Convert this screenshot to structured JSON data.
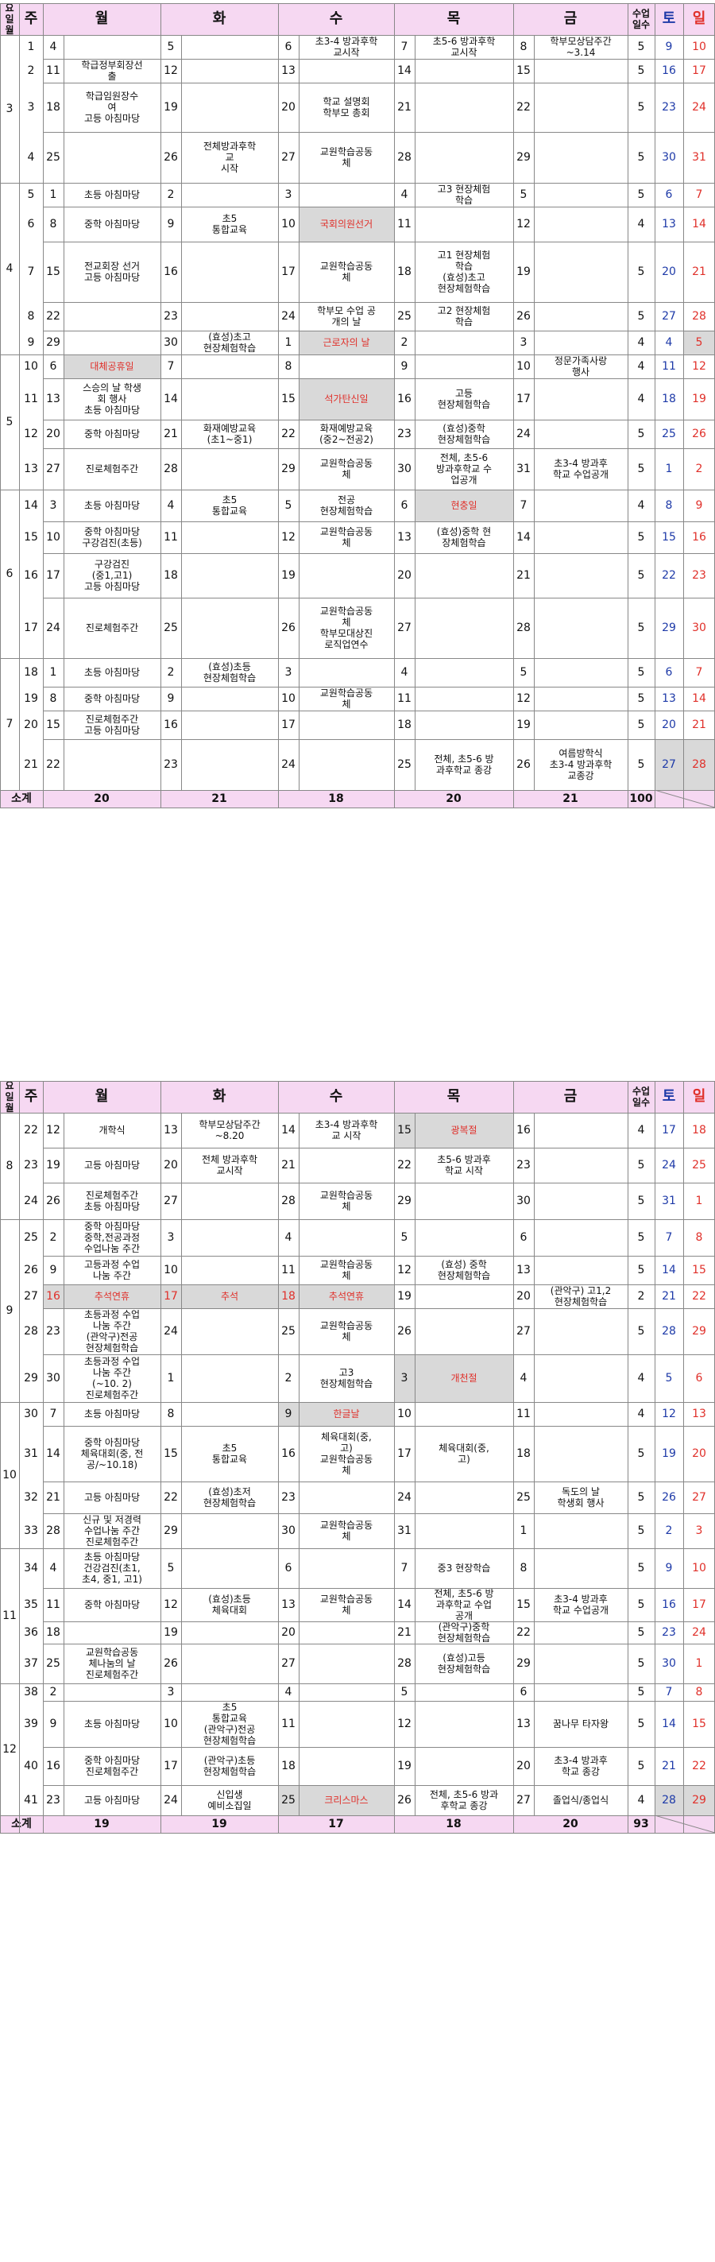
{
  "colors": {
    "header_bg": "#f6d8f2",
    "holiday": "#e0302a",
    "saturday": "#1e3aa8",
    "shade": "#d9d9d9"
  },
  "header": {
    "month_week": "요일\n월",
    "week": "주",
    "mon": "월",
    "tue": "화",
    "wed": "수",
    "thu": "목",
    "fri": "금",
    "days": "수업\n일수",
    "sat": "토",
    "sun": "일"
  },
  "table1": {
    "months": [
      "3",
      "4",
      "5",
      "6",
      "7"
    ],
    "rows": [
      {
        "week": "1",
        "mon_d": "4",
        "mon_e": "",
        "tue_d": "5",
        "tue_e": "",
        "wed_d": "6",
        "wed_e": "초3-4 방과후학\n교시작",
        "thu_d": "7",
        "thu_e": "초5-6 방과후학\n교시작",
        "fri_d": "8",
        "fri_e": "학부모상담주간\n~3.14",
        "days": "5",
        "sat": "9",
        "sun": "10"
      },
      {
        "week": "2",
        "mon_d": "11",
        "mon_e": "학급정부회장선\n출",
        "tue_d": "12",
        "tue_e": "",
        "wed_d": "13",
        "wed_e": "",
        "thu_d": "14",
        "thu_e": "",
        "fri_d": "15",
        "fri_e": "",
        "days": "5",
        "sat": "16",
        "sun": "17"
      },
      {
        "week": "3",
        "mon_d": "18",
        "mon_e": "학급임원장수\n여\n고등 아침마당",
        "tue_d": "19",
        "tue_e": "",
        "wed_d": "20",
        "wed_e": "학교 설명회\n학부모 총회",
        "thu_d": "21",
        "thu_e": "",
        "fri_d": "22",
        "fri_e": "",
        "days": "5",
        "sat": "23",
        "sun": "24"
      },
      {
        "week": "4",
        "mon_d": "25",
        "mon_e": "",
        "tue_d": "26",
        "tue_e": "전체방과후학\n교\n시작",
        "wed_d": "27",
        "wed_e": "교원학습공동\n체",
        "thu_d": "28",
        "thu_e": "",
        "fri_d": "29",
        "fri_e": "",
        "days": "5",
        "sat": "30",
        "sun": "31"
      },
      {
        "week": "5",
        "mon_d": "1",
        "mon_e": "초등 아침마당",
        "tue_d": "2",
        "tue_e": "",
        "wed_d": "3",
        "wed_e": "",
        "thu_d": "4",
        "thu_e": "고3 현장체험\n학습",
        "fri_d": "5",
        "fri_e": "",
        "days": "5",
        "sat": "6",
        "sun": "7"
      },
      {
        "week": "6",
        "mon_d": "8",
        "mon_e": "중학 아침마당",
        "tue_d": "9",
        "tue_e": "초5\n통합교육",
        "wed_d": "10",
        "wed_e": "국회의원선거",
        "thu_d": "11",
        "thu_e": "",
        "fri_d": "12",
        "fri_e": "",
        "days": "4",
        "sat": "13",
        "sun": "14"
      },
      {
        "week": "7",
        "mon_d": "15",
        "mon_e": "전교회장 선거\n고등 아침마당",
        "tue_d": "16",
        "tue_e": "",
        "wed_d": "17",
        "wed_e": "교원학습공동\n체",
        "thu_d": "18",
        "thu_e": "고1 현장체험\n학습\n(효성)초고\n현장체험학습",
        "fri_d": "19",
        "fri_e": "",
        "days": "5",
        "sat": "20",
        "sun": "21"
      },
      {
        "week": "8",
        "mon_d": "22",
        "mon_e": "",
        "tue_d": "23",
        "tue_e": "",
        "wed_d": "24",
        "wed_e": "학부모 수업 공\n개의 날",
        "thu_d": "25",
        "thu_e": "고2 현장체험\n학습",
        "fri_d": "26",
        "fri_e": "",
        "days": "5",
        "sat": "27",
        "sun": "28"
      },
      {
        "week": "9",
        "mon_d": "29",
        "mon_e": "",
        "tue_d": "30",
        "tue_e": "(효성)초고\n현장체험학습",
        "wed_d": "1",
        "wed_e": "근로자의 날",
        "thu_d": "2",
        "thu_e": "",
        "fri_d": "3",
        "fri_e": "",
        "days": "4",
        "sat": "4",
        "sun": "5"
      },
      {
        "week": "10",
        "mon_d": "6",
        "mon_e": "대체공휴일",
        "tue_d": "7",
        "tue_e": "",
        "wed_d": "8",
        "wed_e": "",
        "thu_d": "9",
        "thu_e": "",
        "fri_d": "10",
        "fri_e": "정문가족사랑\n행사",
        "days": "4",
        "sat": "11",
        "sun": "12"
      },
      {
        "week": "11",
        "mon_d": "13",
        "mon_e": "스승의 날 학생\n회 행사\n초등 아침마당",
        "tue_d": "14",
        "tue_e": "",
        "wed_d": "15",
        "wed_e": "석가탄신일",
        "thu_d": "16",
        "thu_e": "고등\n현장체험학습",
        "fri_d": "17",
        "fri_e": "",
        "days": "4",
        "sat": "18",
        "sun": "19"
      },
      {
        "week": "12",
        "mon_d": "20",
        "mon_e": "중학 아침마당",
        "tue_d": "21",
        "tue_e": "화재예방교육\n(초1~중1)",
        "wed_d": "22",
        "wed_e": "화재예방교육\n(중2~전공2)",
        "thu_d": "23",
        "thu_e": "(효성)중학\n현장체험학습",
        "fri_d": "24",
        "fri_e": "",
        "days": "5",
        "sat": "25",
        "sun": "26"
      },
      {
        "week": "13",
        "mon_d": "27",
        "mon_e": "진로체험주간",
        "tue_d": "28",
        "tue_e": "",
        "wed_d": "29",
        "wed_e": "교원학습공동\n체",
        "thu_d": "30",
        "thu_e": "전체, 초5-6\n방과후학교 수\n업공개",
        "fri_d": "31",
        "fri_e": "초3-4 방과후\n학교 수업공개",
        "days": "5",
        "sat": "1",
        "sun": "2"
      },
      {
        "week": "14",
        "mon_d": "3",
        "mon_e": "초등 아침마당",
        "tue_d": "4",
        "tue_e": "초5\n통합교육",
        "wed_d": "5",
        "wed_e": "전공\n현장체험학습",
        "thu_d": "6",
        "thu_e": "현충일",
        "fri_d": "7",
        "fri_e": "",
        "days": "4",
        "sat": "8",
        "sun": "9"
      },
      {
        "week": "15",
        "mon_d": "10",
        "mon_e": "중학 아침마당\n구강검진(초등)",
        "tue_d": "11",
        "tue_e": "",
        "wed_d": "12",
        "wed_e": "교원학습공동\n체",
        "thu_d": "13",
        "thu_e": "(효성)중학 현\n장체험학습",
        "fri_d": "14",
        "fri_e": "",
        "days": "5",
        "sat": "15",
        "sun": "16"
      },
      {
        "week": "16",
        "mon_d": "17",
        "mon_e": "구강검진\n(중1,고1)\n고등 아침마당",
        "tue_d": "18",
        "tue_e": "",
        "wed_d": "19",
        "wed_e": "",
        "thu_d": "20",
        "thu_e": "",
        "fri_d": "21",
        "fri_e": "",
        "days": "5",
        "sat": "22",
        "sun": "23"
      },
      {
        "week": "17",
        "mon_d": "24",
        "mon_e": "진로체험주간",
        "tue_d": "25",
        "tue_e": "",
        "wed_d": "26",
        "wed_e": "교원학습공동\n체\n학부모대상진\n로직업연수",
        "thu_d": "27",
        "thu_e": "",
        "fri_d": "28",
        "fri_e": "",
        "days": "5",
        "sat": "29",
        "sun": "30"
      },
      {
        "week": "18",
        "mon_d": "1",
        "mon_e": "초등 아침마당",
        "tue_d": "2",
        "tue_e": "(효성)초등\n현장체험학습",
        "wed_d": "3",
        "wed_e": "",
        "thu_d": "4",
        "thu_e": "",
        "fri_d": "5",
        "fri_e": "",
        "days": "5",
        "sat": "6",
        "sun": "7"
      },
      {
        "week": "19",
        "mon_d": "8",
        "mon_e": "중학 아침마당",
        "tue_d": "9",
        "tue_e": "",
        "wed_d": "10",
        "wed_e": "교원학습공동\n체",
        "thu_d": "11",
        "thu_e": "",
        "fri_d": "12",
        "fri_e": "",
        "days": "5",
        "sat": "13",
        "sun": "14"
      },
      {
        "week": "20",
        "mon_d": "15",
        "mon_e": "진로체험주간\n고등 아침마당",
        "tue_d": "16",
        "tue_e": "",
        "wed_d": "17",
        "wed_e": "",
        "thu_d": "18",
        "thu_e": "",
        "fri_d": "19",
        "fri_e": "",
        "days": "5",
        "sat": "20",
        "sun": "21"
      },
      {
        "week": "21",
        "mon_d": "22",
        "mon_e": "",
        "tue_d": "23",
        "tue_e": "",
        "wed_d": "24",
        "wed_e": "",
        "thu_d": "25",
        "thu_e": "전체, 초5-6 방\n과후학교 종강",
        "fri_d": "26",
        "fri_e": "여름방학식\n초3-4 방과후학\n교종강",
        "days": "5",
        "sat": "27",
        "sun": "28"
      }
    ],
    "subtotal": {
      "label": "소계",
      "mon": "20",
      "tue": "21",
      "wed": "18",
      "thu": "20",
      "fri": "21",
      "days": "100"
    }
  },
  "table2": {
    "months": [
      "8",
      "9",
      "10",
      "11",
      "12"
    ],
    "rows": [
      {
        "week": "12",
        "mon_d": "",
        "mon_e": "개학식",
        "tue_d": "13",
        "tue_e": "학부모상담주간\n~8.20",
        "wed_d": "14",
        "wed_e": "초3-4 방과후학\n교 시작",
        "thu_d": "15",
        "thu_e": "광복절",
        "fri_d": "16",
        "fri_e": "",
        "days": "4",
        "sat": "17",
        "sun": "18"
      },
      {
        "week": "19",
        "mon_d": "",
        "mon_e": "고등 아침마당",
        "tue_d": "20",
        "tue_e": "전체 방과후학\n교시작",
        "wed_d": "21",
        "wed_e": "",
        "thu_d": "22",
        "thu_e": "초5-6 방과후\n학교 시작",
        "fri_d": "23",
        "fri_e": "",
        "days": "5",
        "sat": "24",
        "sun": "25"
      },
      {
        "week": "26",
        "mon_d": "",
        "mon_e": "진로체험주간\n초등 아침마당",
        "tue_d": "27",
        "tue_e": "",
        "wed_d": "28",
        "wed_e": "교원학습공동\n체",
        "thu_d": "29",
        "thu_e": "",
        "fri_d": "30",
        "fri_e": "",
        "days": "5",
        "sat": "31",
        "sun": "1"
      },
      {
        "week": "2",
        "mon_d": "",
        "mon_e": "중학 아침마당\n중학,전공과정\n수업나눔 주간",
        "tue_d": "3",
        "tue_e": "",
        "wed_d": "4",
        "wed_e": "",
        "thu_d": "5",
        "thu_e": "",
        "fri_d": "6",
        "fri_e": "",
        "days": "5",
        "sat": "7",
        "sun": "8"
      },
      {
        "week": "9",
        "mon_d": "",
        "mon_e": "고등과정 수업\n나눔 주간",
        "tue_d": "10",
        "tue_e": "",
        "wed_d": "11",
        "wed_e": "교원학습공동\n체",
        "thu_d": "12",
        "thu_e": "(효성) 중학\n현장체험학습",
        "fri_d": "13",
        "fri_e": "",
        "days": "5",
        "sat": "14",
        "sun": "15"
      },
      {
        "week": "16",
        "mon_d": "",
        "mon_e": "추석연휴",
        "tue_d": "17",
        "tue_e": "추석",
        "wed_d": "18",
        "wed_e": "추석연휴",
        "thu_d": "19",
        "thu_e": "",
        "fri_d": "20",
        "fri_e": "(관악구) 고1,2\n현장체험학습",
        "days": "2",
        "sat": "21",
        "sun": "22"
      },
      {
        "week": "23",
        "mon_d": "",
        "mon_e": "초등과정 수업\n나눔 주간\n(관악구)전공\n현장체험학습",
        "tue_d": "24",
        "tue_e": "",
        "wed_d": "25",
        "wed_e": "교원학습공동\n체",
        "thu_d": "26",
        "thu_e": "",
        "fri_d": "27",
        "fri_e": "",
        "days": "5",
        "sat": "28",
        "sun": "29"
      },
      {
        "week": "30",
        "mon_d": "",
        "mon_e": "초등과정 수업\n나눔 주간\n(~10. 2)\n진로체험주간",
        "tue_d": "1",
        "tue_e": "",
        "wed_d": "2",
        "wed_e": "고3\n현장체험학습",
        "thu_d": "3",
        "thu_e": "개천절",
        "fri_d": "4",
        "fri_e": "",
        "days": "4",
        "sat": "5",
        "sun": "6"
      },
      {
        "week": "7",
        "mon_d": "",
        "mon_e": "초등 아침마당",
        "tue_d": "8",
        "tue_e": "",
        "wed_d": "9",
        "wed_e": "한글날",
        "thu_d": "10",
        "thu_e": "",
        "fri_d": "11",
        "fri_e": "",
        "days": "4",
        "sat": "12",
        "sun": "13"
      },
      {
        "week": "14",
        "mon_d": "",
        "mon_e": "중학 아침마당\n체육대회(중, 전\n공/~10.18)",
        "tue_d": "15",
        "tue_e": "초5\n통합교육",
        "wed_d": "16",
        "wed_e": "체육대회(중,\n고)\n교원학습공동\n체",
        "thu_d": "17",
        "thu_e": "체육대회(중,\n고)",
        "fri_d": "18",
        "fri_e": "",
        "days": "5",
        "sat": "19",
        "sun": "20"
      },
      {
        "week": "21",
        "mon_d": "",
        "mon_e": "고등 아침마당",
        "tue_d": "22",
        "tue_e": "(효성)초저\n현장체험학습",
        "wed_d": "23",
        "wed_e": "",
        "thu_d": "24",
        "thu_e": "",
        "fri_d": "25",
        "fri_e": "독도의 날\n학생회 행사",
        "days": "5",
        "sat": "26",
        "sun": "27"
      },
      {
        "week": "28",
        "mon_d": "",
        "mon_e": "신규 및 저경력\n수업나눔 주간\n진로체험주간",
        "tue_d": "29",
        "tue_e": "",
        "wed_d": "30",
        "wed_e": "교원학습공동\n체",
        "thu_d": "31",
        "thu_e": "",
        "fri_d": "1",
        "fri_e": "",
        "days": "5",
        "sat": "2",
        "sun": "3"
      },
      {
        "week": "4",
        "mon_d": "",
        "mon_e": "초등 아침마당\n건강검진(초1,\n초4, 중1, 고1)",
        "tue_d": "5",
        "tue_e": "",
        "wed_d": "6",
        "wed_e": "",
        "thu_d": "7",
        "thu_e": "중3 현장학습",
        "fri_d": "8",
        "fri_e": "",
        "days": "5",
        "sat": "9",
        "sun": "10"
      },
      {
        "week": "11",
        "mon_d": "",
        "mon_e": "중학 아침마당",
        "tue_d": "12",
        "tue_e": "(효성)초등\n체육대회",
        "wed_d": "13",
        "wed_e": "교원학습공동\n체",
        "thu_d": "14",
        "thu_e": "전체, 초5-6 방\n과후학교 수업\n공개",
        "fri_d": "15",
        "fri_e": "초3-4 방과후\n학교 수업공개",
        "days": "5",
        "sat": "16",
        "sun": "17"
      },
      {
        "week": "18",
        "mon_d": "",
        "mon_e": "",
        "tue_d": "19",
        "tue_e": "",
        "wed_d": "20",
        "wed_e": "",
        "thu_d": "21",
        "thu_e": "(관악구)중학\n현장체험학습",
        "fri_d": "22",
        "fri_e": "",
        "days": "5",
        "sat": "23",
        "sun": "24"
      },
      {
        "week": "25",
        "mon_d": "",
        "mon_e": "교원학습공동\n체나눔의 날\n진로체험주간",
        "tue_d": "26",
        "tue_e": "",
        "wed_d": "27",
        "wed_e": "",
        "thu_d": "28",
        "thu_e": "(효성)고등\n현장체험학습",
        "fri_d": "29",
        "fri_e": "",
        "days": "5",
        "sat": "30",
        "sun": "1"
      },
      {
        "week": "2",
        "mon_d": "",
        "mon_e": "",
        "tue_d": "3",
        "tue_e": "",
        "wed_d": "4",
        "wed_e": "",
        "thu_d": "5",
        "thu_e": "",
        "fri_d": "6",
        "fri_e": "",
        "days": "5",
        "sat": "7",
        "sun": "8"
      },
      {
        "week": "9",
        "mon_d": "",
        "mon_e": "초등 아침마당",
        "tue_d": "10",
        "tue_e": "초5\n통합교육\n(관악구)전공\n현장체험학습",
        "wed_d": "11",
        "wed_e": "",
        "thu_d": "12",
        "thu_e": "",
        "fri_d": "13",
        "fri_e": "꿈나무 타자왕",
        "days": "5",
        "sat": "14",
        "sun": "15"
      },
      {
        "week": "16",
        "mon_d": "",
        "mon_e": "중학 아침마당\n진로체험주간",
        "tue_d": "17",
        "tue_e": "(관악구)초등\n현장체험학습",
        "wed_d": "18",
        "wed_e": "",
        "thu_d": "19",
        "thu_e": "",
        "fri_d": "20",
        "fri_e": "초3-4 방과후\n학교 종강",
        "days": "5",
        "sat": "21",
        "sun": "22"
      },
      {
        "week": "23",
        "mon_d": "",
        "mon_e": "고등 아침마당",
        "tue_d": "24",
        "tue_e": "신입생\n예비소집일",
        "wed_d": "25",
        "wed_e": "크리스마스",
        "thu_d": "26",
        "thu_e": "전체, 초5-6 방과\n후학교 종강",
        "fri_d": "27",
        "fri_e": "졸업식/종업식",
        "days": "4",
        "sat": "28",
        "sun": "29"
      }
    ],
    "week_numbers": [
      "22",
      "23",
      "24",
      "25",
      "26",
      "27",
      "28",
      "29",
      "30",
      "31",
      "32",
      "33",
      "34",
      "35",
      "36",
      "37",
      "38",
      "39",
      "40",
      "41"
    ],
    "subtotal": {
      "label": "소계",
      "mon": "19",
      "tue": "19",
      "wed": "17",
      "thu": "18",
      "fri": "20",
      "days": "93"
    }
  }
}
